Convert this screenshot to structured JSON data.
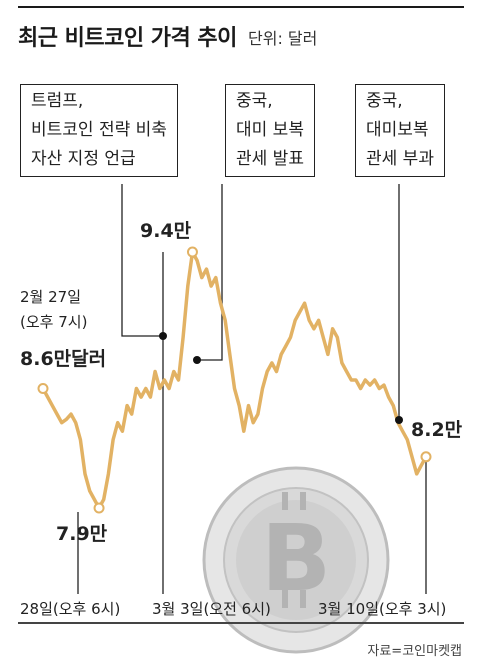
{
  "header": {
    "title": "최근 비트코인 가격 추이",
    "unit": "단위: 달러"
  },
  "annotations": [
    {
      "text": "트럼프,\n비트코인 전략 비축\n자산 지정 언급"
    },
    {
      "text": "중국,\n대미 보복\n관세 발표"
    },
    {
      "text": "중국,\n대미보복\n관세 부과"
    }
  ],
  "labels": {
    "start_date": "2월 27일\n(오후 7시)",
    "start_value": "8.6만달러",
    "low_value": "7.9만",
    "peak_value": "9.4만",
    "end_value": "8.2만"
  },
  "x_ticks": [
    "28일(오후 6시)",
    "3월 3일(오전 6시)",
    "3월 10일(오후 3시)"
  ],
  "source": "자료=코인마켓캡",
  "colors": {
    "line": "#e2b264",
    "text": "#1a1a1a",
    "coin": "#d4d4d4"
  },
  "chart_data": {
    "type": "line",
    "title": "최근 비트코인 가격 추이",
    "unit": "단위: 달러",
    "y_unit": "만 달러",
    "x_ticks": [
      "28일(오후 6시)",
      "3월 3일(오전 6시)",
      "3월 10일(오후 3시)"
    ],
    "series": [
      {
        "values": [
          8.6,
          8.55,
          8.5,
          8.45,
          8.4,
          8.42,
          8.45,
          8.4,
          8.3,
          8.1,
          8.0,
          7.95,
          7.9,
          7.95,
          8.1,
          8.3,
          8.4,
          8.35,
          8.5,
          8.45,
          8.6,
          8.55,
          8.6,
          8.55,
          8.7,
          8.6,
          8.65,
          8.6,
          8.7,
          8.65,
          8.9,
          9.2,
          9.4,
          9.35,
          9.25,
          9.3,
          9.2,
          9.25,
          9.1,
          9.0,
          8.8,
          8.6,
          8.5,
          8.35,
          8.5,
          8.4,
          8.45,
          8.6,
          8.7,
          8.75,
          8.7,
          8.8,
          8.85,
          8.9,
          9.0,
          9.05,
          9.1,
          9.0,
          8.95,
          9.0,
          8.9,
          8.8,
          8.95,
          8.9,
          8.75,
          8.7,
          8.65,
          8.65,
          8.6,
          8.65,
          8.62,
          8.65,
          8.6,
          8.62,
          8.55,
          8.5,
          8.4,
          8.35,
          8.3,
          8.2,
          8.1,
          8.15,
          8.2
        ],
        "marked": [
          {
            "index": 0,
            "label": "8.6만"
          },
          {
            "index": 12,
            "label": "7.9만"
          },
          {
            "index": 32,
            "label": "9.4만"
          },
          {
            "index": 82,
            "label": "8.2만"
          }
        ]
      }
    ]
  }
}
